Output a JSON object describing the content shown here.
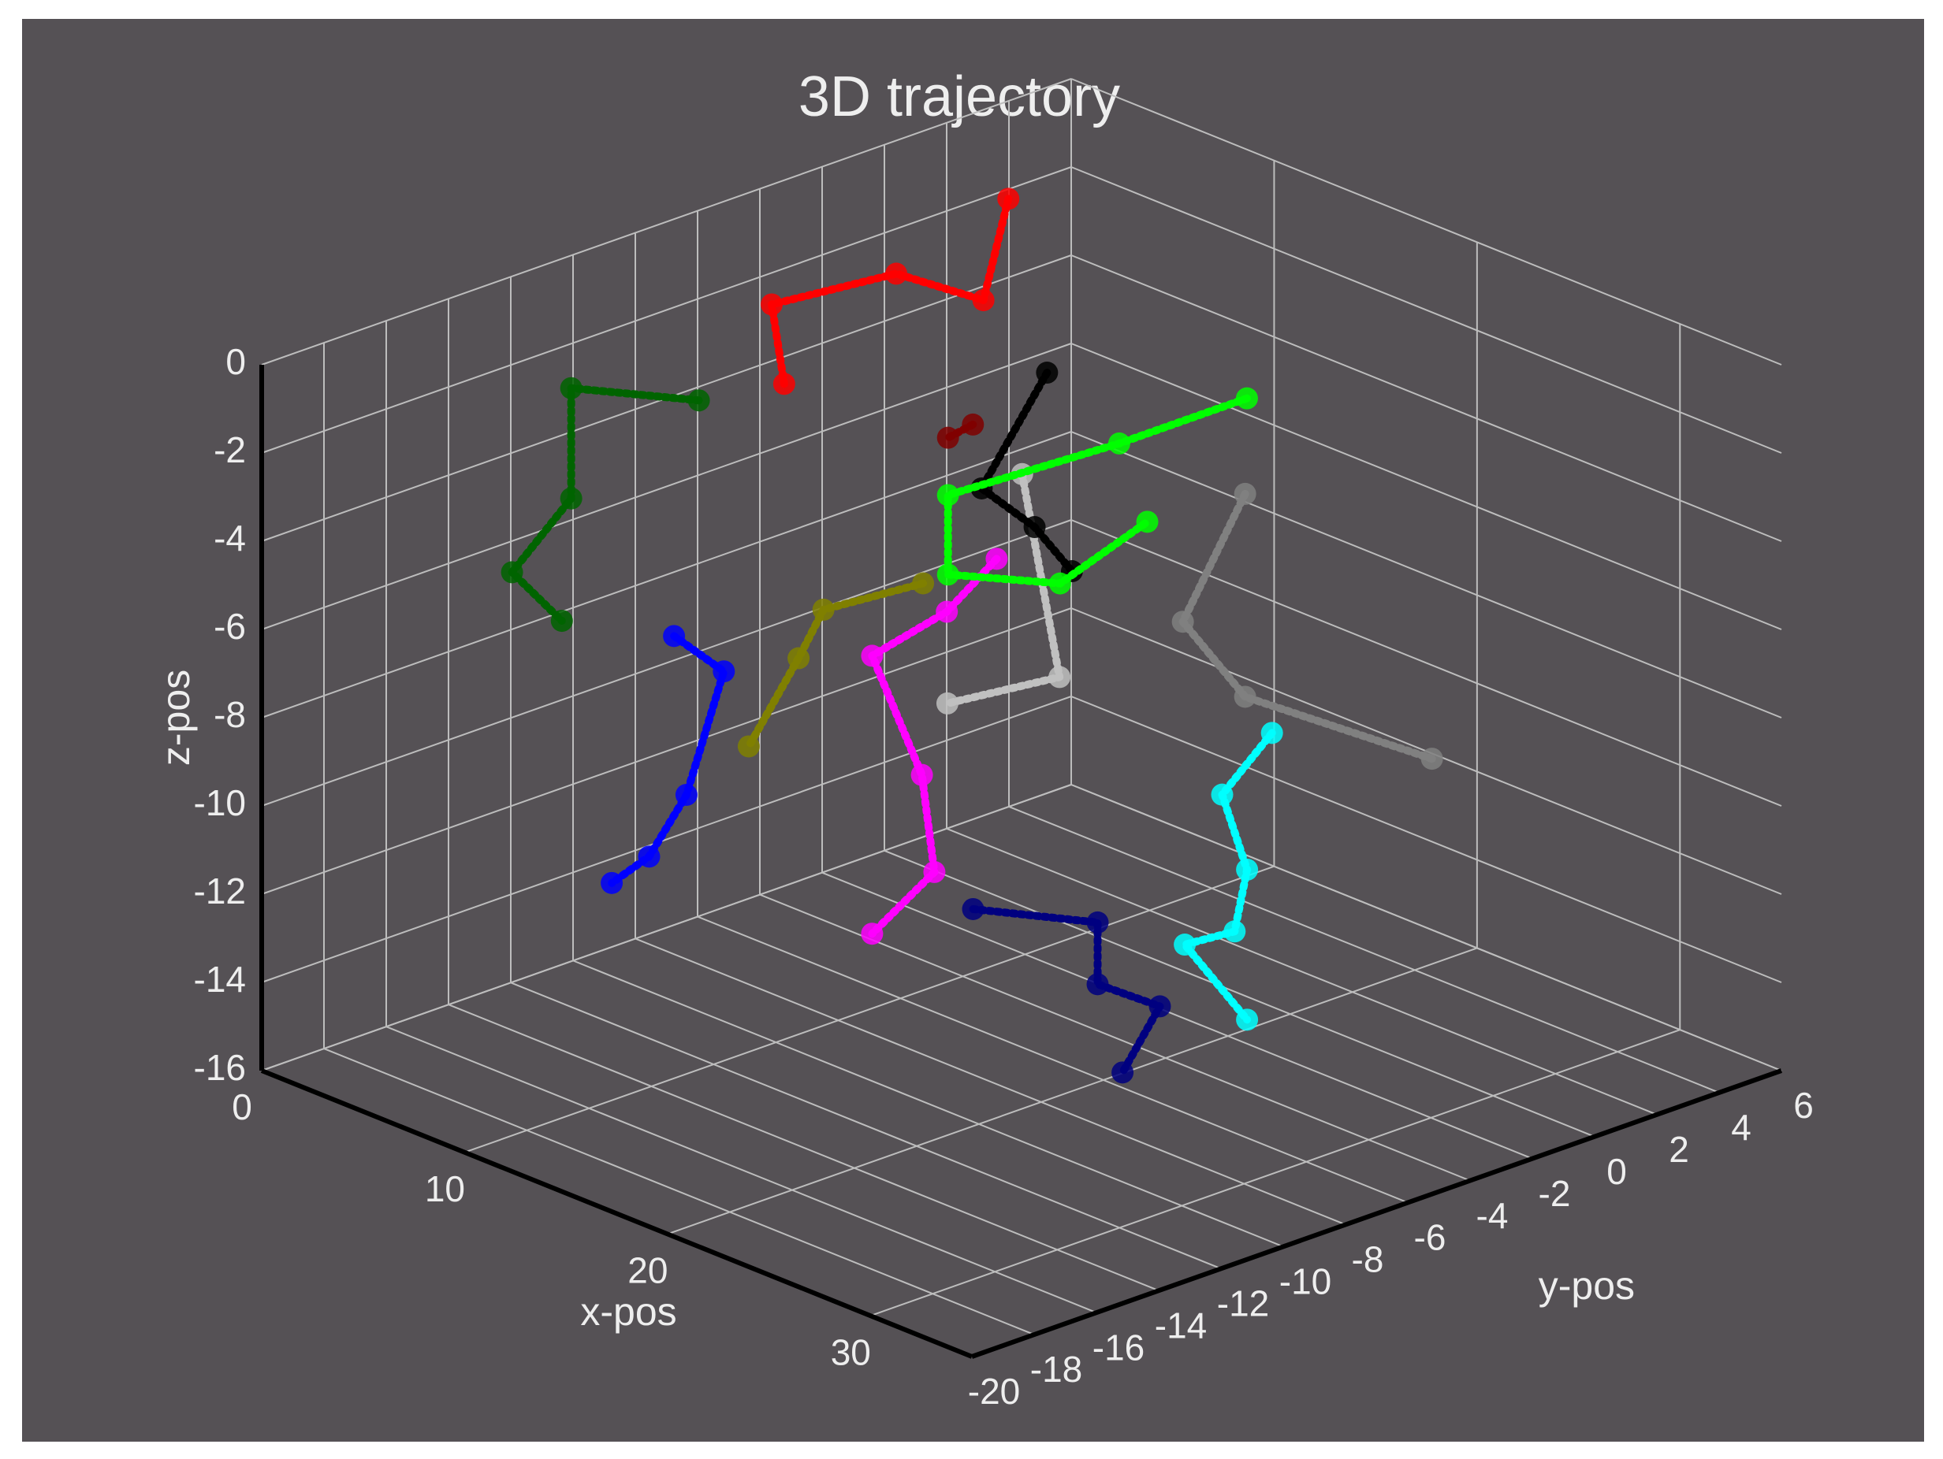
{
  "chart_data": {
    "type": "scatter3d",
    "title": "3D trajectory",
    "x_label": "x-pos",
    "y_label": "y-pos",
    "z_label": "z-pos",
    "xlim": [
      0,
      35
    ],
    "ylim": [
      -20,
      6
    ],
    "zlim": [
      -16,
      0
    ],
    "xticks": [
      0,
      10,
      20,
      30
    ],
    "yticks": [
      -20,
      -18,
      -16,
      -14,
      -12,
      -10,
      -8,
      -6,
      -4,
      -2,
      0,
      2,
      4,
      6
    ],
    "zticks": [
      -16,
      -14,
      -12,
      -10,
      -8,
      -6,
      -4,
      -2,
      0
    ],
    "grid": true,
    "series": [
      {
        "color": "#ff0000",
        "x": [
          3.5,
          3.5,
          3.5,
          3.5,
          3.5
        ],
        "y": [
          1.7,
          0.9,
          -1.9,
          -5.9,
          -5.5
        ],
        "z": [
          -1.0,
          -3.1,
          -1.8,
          -1.5,
          -3.4
        ]
      },
      {
        "color": "#006400",
        "x": [
          1.75,
          1.75,
          1.75,
          1.75,
          1.75
        ],
        "y": [
          -7.1,
          -11.2,
          -11.2,
          -13.1,
          -11.5
        ],
        "z": [
          -3.7,
          -2.4,
          -4.9,
          -6.1,
          -7.6
        ]
      },
      {
        "color": "#0000ff",
        "x": [
          10.5,
          10.5,
          10.5,
          10.5,
          10.5
        ],
        "y": [
          -13.6,
          -12.0,
          -13.2,
          -14.4,
          -15.6
        ],
        "z": [
          -5.8,
          -7.0,
          -9.5,
          -10.6,
          -10.9
        ]
      },
      {
        "color": "#808000",
        "x": [
          10.5,
          10.5,
          10.5,
          10.5
        ],
        "y": [
          -5.6,
          -8.8,
          -9.6,
          -11.2
        ],
        "z": [
          -6.6,
          -6.4,
          -7.3,
          -8.9
        ]
      },
      {
        "color": "#ff00ff",
        "x": [
          17.5,
          17.5,
          17.5,
          17.5,
          17.5,
          17.5
        ],
        "y": [
          -7.8,
          -9.4,
          -11.8,
          -10.2,
          -9.8,
          -11.8
        ],
        "z": [
          -4.2,
          -5.0,
          -5.4,
          -8.5,
          -10.8,
          -11.7
        ]
      },
      {
        "color": "#c0c0c0",
        "x": [
          14,
          14,
          14
        ],
        "y": [
          -4.7,
          -3.5,
          -7.1
        ],
        "z": [
          -3.7,
          -8.6,
          -8.3
        ]
      },
      {
        "color": "#800000",
        "x": [
          10.5,
          10.5
        ],
        "y": [
          -4.0,
          -4.8
        ],
        "z": [
          -3.4,
          -3.5
        ]
      },
      {
        "color": "#000000",
        "x": [
          14,
          14,
          14,
          14
        ],
        "y": [
          -3.9,
          -6.0,
          -4.3,
          -3.1
        ],
        "z": [
          -1.6,
          -3.7,
          -5.0,
          -6.3
        ]
      },
      {
        "color": "#00ff00",
        "x": [
          10.5,
          10.5,
          10.5,
          10.5,
          10.5,
          10.5
        ],
        "y": [
          4.8,
          0.7,
          -4.8,
          -4.8,
          -1.2,
          1.6
        ],
        "z": [
          -5.0,
          -5.0,
          -4.8,
          -6.6,
          -7.7,
          -7.0
        ]
      },
      {
        "color": "#808080",
        "x": [
          21,
          21,
          21,
          21
        ],
        "y": [
          -2.1,
          -4.1,
          -2.1,
          3.9
        ],
        "z": [
          -3.5,
          -5.9,
          -8.1,
          -11.0
        ]
      },
      {
        "color": "#00ffff",
        "x": [
          28,
          28,
          28,
          28,
          28,
          28
        ],
        "y": [
          -5.8,
          -7.4,
          -6.6,
          -7.0,
          -8.6,
          -6.6
        ],
        "z": [
          -6.7,
          -7.7,
          -9.6,
          -10.9,
          -10.8,
          -13.0
        ]
      },
      {
        "color": "#000080",
        "x": [
          28,
          28,
          28,
          28,
          28
        ],
        "y": [
          -15.4,
          -11.4,
          -11.4,
          -9.4,
          -10.6
        ],
        "z": [
          -8.3,
          -9.6,
          -11.0,
          -12.0,
          -13.2
        ]
      }
    ]
  }
}
